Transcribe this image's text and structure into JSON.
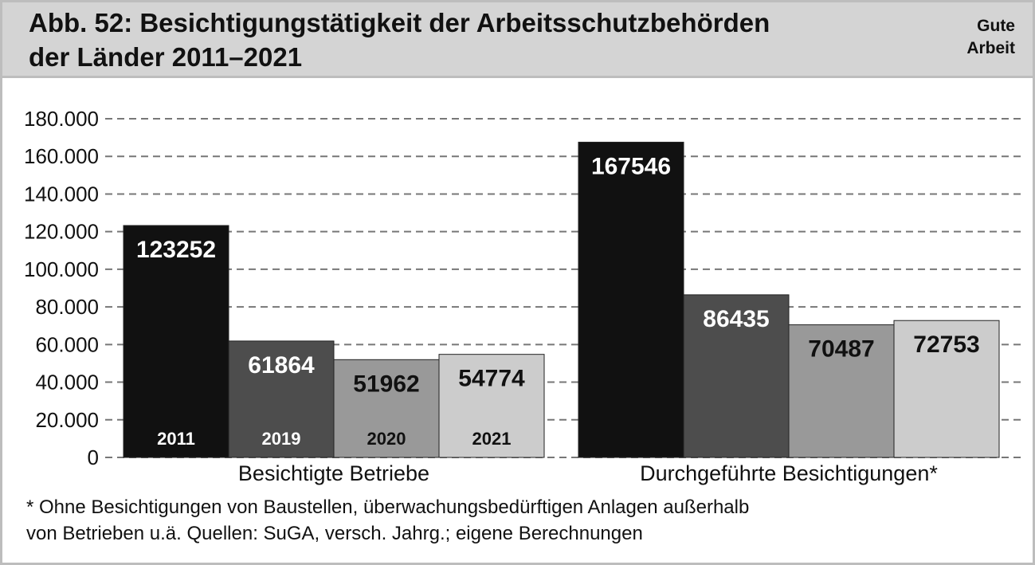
{
  "header": {
    "title_line1": "Abb. 52: Besichtigungstätigkeit der Arbeitsschutzbehörden",
    "title_line2": "der Länder 2011–2021",
    "brand_line1": "Gute",
    "brand_line2": "Arbeit"
  },
  "footnote": {
    "line1": "* Ohne Besichtigungen von Baustellen, überwachungsbedürftigen Anlagen außerhalb",
    "line2": "von Betrieben u.ä. Quellen:  SuGA, versch. Jahrg.; eigene Berechnungen"
  },
  "colors": {
    "2011": "#111111",
    "2019": "#4d4d4d",
    "2020": "#999999",
    "2021": "#cccccc"
  },
  "chart_data": {
    "type": "bar",
    "title": "Abb. 52: Besichtigungstätigkeit der Arbeitsschutzbehörden der Länder 2011–2021",
    "categories": [
      "Besichtigte Betriebe",
      "Durchgeführte Besichtigungen*"
    ],
    "series": [
      {
        "name": "2011",
        "values": [
          123252,
          167546
        ]
      },
      {
        "name": "2019",
        "values": [
          61864,
          86435
        ]
      },
      {
        "name": "2020",
        "values": [
          51962,
          70487
        ]
      },
      {
        "name": "2021",
        "values": [
          54774,
          72753
        ]
      }
    ],
    "ylim": [
      0,
      180000
    ],
    "yticks": [
      0,
      20000,
      40000,
      60000,
      80000,
      100000,
      120000,
      140000,
      160000,
      180000
    ],
    "ytick_labels": [
      "0",
      "20.000",
      "40.000",
      "60.000",
      "80.000",
      "100.000",
      "120.000",
      "140.000",
      "160.000",
      "180.000"
    ],
    "grid": true,
    "grid_style": "dashed",
    "legend": "year labels inside bars of first group",
    "data_labels": true
  }
}
